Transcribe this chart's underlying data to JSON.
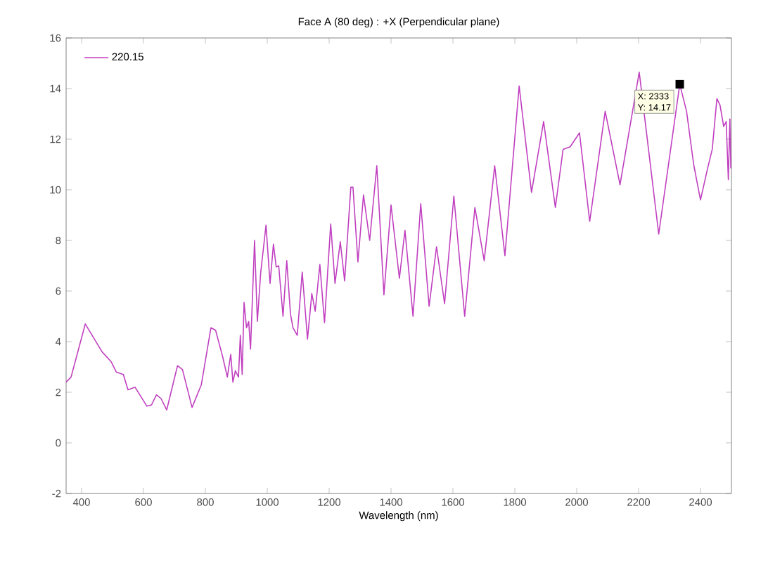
{
  "chart_data": {
    "type": "line",
    "title": "Face A (80 deg) :      +X (Perpendicular plane)",
    "xlabel": "Wavelength (nm)",
    "xlim": [
      350,
      2500
    ],
    "xticks": [
      400,
      600,
      800,
      1000,
      1200,
      1400,
      1600,
      1800,
      2000,
      2200,
      2400
    ],
    "ylim": [
      -2,
      16
    ],
    "yticks": [
      -2,
      0,
      2,
      4,
      6,
      8,
      10,
      12,
      14,
      16
    ],
    "grid": false,
    "legend": "top left",
    "marker": "none",
    "line_style": "solid",
    "annotations": [
      {
        "text": "X: 2333",
        "x": 2333,
        "y": 14.17
      },
      {
        "text": "Y: 14.17",
        "x": 2333,
        "y": 14.17
      }
    ],
    "series": [
      {
        "name": "220.15",
        "color": "#c040c0",
        "x": [
          350,
          366,
          412,
          466,
          496,
          512,
          535,
          550,
          573,
          611,
          626,
          642,
          657,
          675,
          688,
          710,
          726,
          757,
          787,
          818,
          833,
          856,
          871,
          882,
          889,
          897,
          907,
          913,
          919,
          925,
          933,
          940,
          946,
          959,
          968,
          979,
          996,
          1009,
          1020,
          1029,
          1037,
          1051,
          1063,
          1075,
          1083,
          1097,
          1113,
          1130,
          1144,
          1155,
          1170,
          1185,
          1205,
          1219,
          1236,
          1250,
          1270,
          1277,
          1293,
          1311,
          1331,
          1354,
          1377,
          1400,
          1427,
          1445,
          1471,
          1496,
          1523,
          1547,
          1573,
          1603,
          1638,
          1671,
          1701,
          1735,
          1768,
          1814,
          1854,
          1893,
          1931,
          1956,
          1979,
          2009,
          2042,
          2092,
          2140,
          2202,
          2265,
          2333,
          2355,
          2378,
          2400,
          2423,
          2438,
          2453,
          2463,
          2475,
          2483,
          2490,
          2495,
          2498
        ],
        "values": [
          2.4,
          2.6,
          4.7,
          3.6,
          3.2,
          2.8,
          2.7,
          2.1,
          2.2,
          1.45,
          1.5,
          1.9,
          1.75,
          1.3,
          1.95,
          3.05,
          2.9,
          1.4,
          2.3,
          4.55,
          4.45,
          3.4,
          2.6,
          3.5,
          2.4,
          2.85,
          2.6,
          4.25,
          2.7,
          5.55,
          4.55,
          4.8,
          3.7,
          8.0,
          4.8,
          6.75,
          8.6,
          6.3,
          7.85,
          6.95,
          7.0,
          5.0,
          7.2,
          5.1,
          4.55,
          4.25,
          6.75,
          4.1,
          5.9,
          5.2,
          7.05,
          4.75,
          8.65,
          6.3,
          7.95,
          6.4,
          10.1,
          10.1,
          7.15,
          9.8,
          8.0,
          10.95,
          5.85,
          9.4,
          6.5,
          8.4,
          5.0,
          9.45,
          5.4,
          7.75,
          5.5,
          9.75,
          5.0,
          9.3,
          7.2,
          10.95,
          7.4,
          14.1,
          9.9,
          12.7,
          9.3,
          11.6,
          11.7,
          12.25,
          8.75,
          13.1,
          10.2,
          14.65,
          8.25,
          14.17,
          13.1,
          11.0,
          9.6,
          10.85,
          11.6,
          13.6,
          13.35,
          12.5,
          12.7,
          10.4,
          12.8,
          10.85
        ]
      }
    ]
  }
}
